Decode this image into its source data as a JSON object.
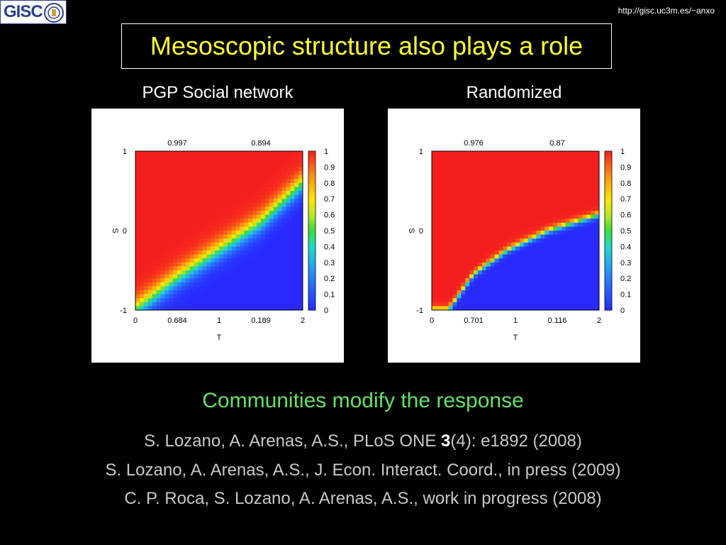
{
  "header": {
    "logo_text": "GISC",
    "url": "http://gisc.uc3m.es/~anxo",
    "title": "Mesoscopic structure also plays a role"
  },
  "colors": {
    "title": "#ffff33",
    "subtitle": "#66e066",
    "reference": "#c8c8c8",
    "background": "#000000"
  },
  "subtitle": "Communities modify the response",
  "references": [
    {
      "before": "S. Lozano, A. Arenas, A.S., PLoS ONE ",
      "bold": "3",
      "after": "(4): e1892 (2008)"
    },
    {
      "before": "S. Lozano, A. Arenas, A.S., J. Econ. Interact. Coord., in press (2009)",
      "bold": "",
      "after": ""
    },
    {
      "before": "C. P. Roca, S. Lozano, A. Arenas, A.S., work in progress (2008)",
      "bold": "",
      "after": ""
    }
  ],
  "chart_data": [
    {
      "type": "heatmap",
      "title": "PGP Social network",
      "xlabel": "T",
      "ylabel": "S",
      "xlim": [
        0,
        2
      ],
      "ylim": [
        -1,
        1
      ],
      "xticks": [
        "0",
        "1",
        "2"
      ],
      "yticks": [
        "-1",
        "0",
        "1"
      ],
      "colorbar": {
        "range": [
          0,
          1
        ],
        "ticks": [
          "0",
          "0.1",
          "0.2",
          "0.3",
          "0.4",
          "0.5",
          "0.6",
          "0.7",
          "0.8",
          "0.9",
          "1"
        ]
      },
      "corner_values": {
        "top_left": "0.997",
        "top_right": "0.894",
        "bottom_left": "0.684",
        "bottom_right": "0.189"
      },
      "transition_boundary": {
        "T": [
          0.0,
          0.5,
          1.0,
          1.5,
          2.0
        ],
        "S": [
          -1.0,
          -0.6,
          -0.25,
          0.1,
          0.6
        ]
      },
      "transition_width": 0.3,
      "colormap": "red-yellow-green-blue"
    },
    {
      "type": "heatmap",
      "title": "Randomized",
      "xlabel": "T",
      "ylabel": "S",
      "xlim": [
        0,
        2
      ],
      "ylim": [
        -1,
        1
      ],
      "xticks": [
        "0",
        "1",
        "2"
      ],
      "yticks": [
        "-1",
        "0",
        "1"
      ],
      "colorbar": {
        "range": [
          0,
          1
        ],
        "ticks": [
          "0",
          "0.1",
          "0.2",
          "0.3",
          "0.4",
          "0.5",
          "0.6",
          "0.7",
          "0.8",
          "0.9",
          "1"
        ]
      },
      "corner_values": {
        "top_left": "0.976",
        "top_right": "0.87",
        "bottom_left": "0.701",
        "bottom_right": "0.116"
      },
      "transition_boundary": {
        "T": [
          0.2,
          0.5,
          0.9,
          1.4,
          2.0
        ],
        "S": [
          -1.0,
          -0.55,
          -0.25,
          0.0,
          0.2
        ]
      },
      "transition_width": 0.09,
      "colormap": "red-yellow-green-blue"
    }
  ]
}
